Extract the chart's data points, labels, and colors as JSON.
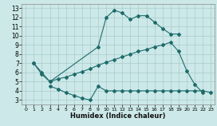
{
  "xlabel": "Humidex (Indice chaleur)",
  "bg_color": "#cce8e8",
  "grid_color": "#aacccc",
  "line_color": "#1e6b6b",
  "xlim": [
    -0.5,
    23.5
  ],
  "ylim": [
    2.5,
    13.5
  ],
  "xticks": [
    0,
    1,
    2,
    3,
    4,
    5,
    6,
    7,
    8,
    9,
    10,
    11,
    12,
    13,
    14,
    15,
    16,
    17,
    18,
    19,
    20,
    21,
    22,
    23
  ],
  "yticks": [
    3,
    4,
    5,
    6,
    7,
    8,
    9,
    10,
    11,
    12,
    13
  ],
  "line1_x": [
    1,
    2,
    3,
    9,
    10,
    11,
    12,
    13,
    14,
    15,
    16,
    17,
    18,
    19
  ],
  "line1_y": [
    7,
    6,
    5,
    8.8,
    12.0,
    12.8,
    12.5,
    11.8,
    12.2,
    12.2,
    11.5,
    10.8,
    10.2,
    10.2
  ],
  "line2_x": [
    1,
    2,
    3,
    4,
    5,
    6,
    7,
    8,
    9,
    10,
    11,
    12,
    13,
    14,
    15,
    16,
    17,
    18,
    19,
    20,
    21,
    22,
    23
  ],
  "line2_y": [
    7.0,
    5.8,
    5.0,
    5.3,
    5.5,
    5.8,
    6.1,
    6.4,
    6.8,
    7.1,
    7.4,
    7.7,
    8.0,
    8.3,
    8.5,
    8.8,
    9.0,
    9.3,
    8.3,
    6.2,
    4.7,
    3.8,
    null
  ],
  "line3_x": [
    3,
    4,
    5,
    6,
    7,
    8,
    9,
    10,
    11,
    12,
    13,
    14,
    15,
    16,
    17,
    18,
    19,
    20,
    21,
    22,
    23
  ],
  "line3_y": [
    4.5,
    4.2,
    3.8,
    3.5,
    3.2,
    3.0,
    4.5,
    4.0,
    4.0,
    4.0,
    4.0,
    4.0,
    4.0,
    4.0,
    4.0,
    4.0,
    4.0,
    4.0,
    4.0,
    4.0,
    3.8
  ]
}
